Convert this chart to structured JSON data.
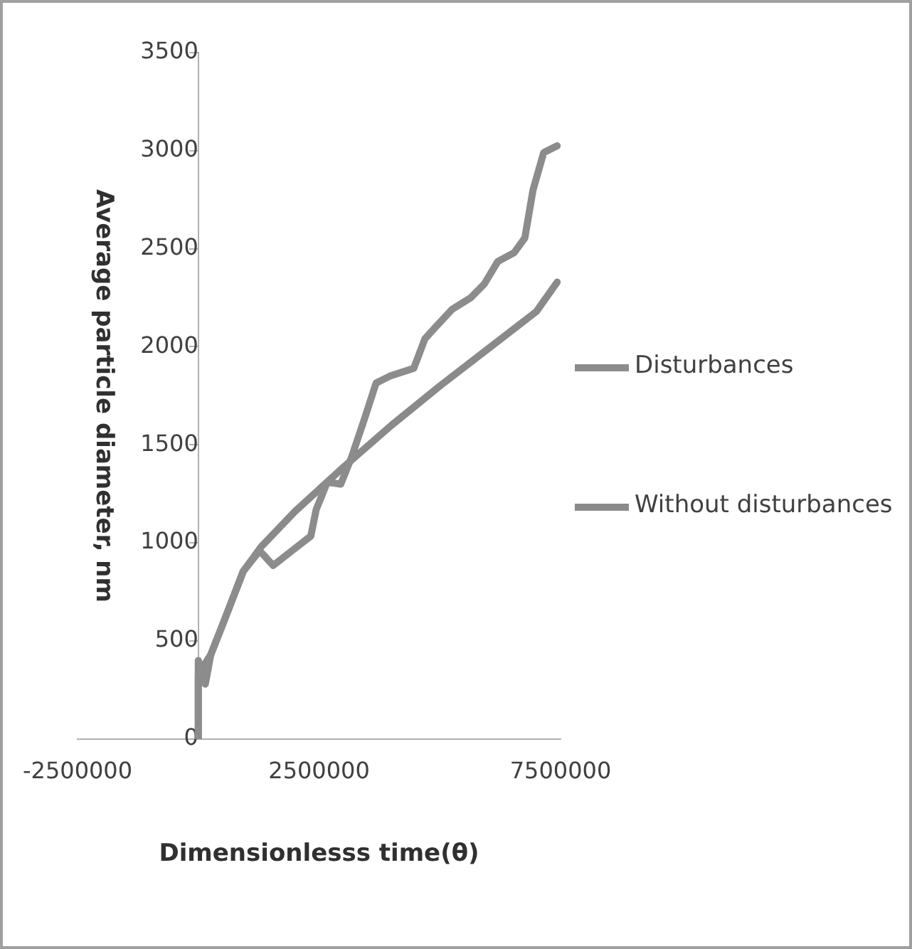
{
  "chart_data": {
    "type": "line",
    "xlabel": "Dimensionlesss time(θ)",
    "ylabel": "Average particle diameter, nm",
    "xlim": [
      -2500000,
      7500000
    ],
    "xticks": [
      -2500000,
      2500000,
      7500000
    ],
    "ylim": [
      0,
      3500
    ],
    "yticks": [
      0,
      500,
      1000,
      1500,
      2000,
      2500,
      3000,
      3500
    ],
    "grid": false,
    "legend": "right",
    "marker": "none",
    "line_style": "solid",
    "series": [
      {
        "name": "Disturbances",
        "color": "#8c8c8c",
        "x": [
          0,
          0,
          145000,
          258000,
          538000,
          930000,
          1270000,
          1550000,
          1940000,
          2330000,
          2440000,
          2670000,
          2950000,
          3170000,
          3450000,
          3680000,
          3960000,
          4460000,
          4690000,
          4910000,
          5250000,
          5640000,
          5920000,
          6200000,
          6540000,
          6760000,
          6930000,
          7150000,
          7430000
        ],
        "values": [
          0,
          400,
          280,
          430,
          605,
          855,
          960,
          885,
          960,
          1035,
          1170,
          1310,
          1300,
          1435,
          1640,
          1815,
          1850,
          1890,
          2040,
          2100,
          2190,
          2250,
          2320,
          2435,
          2480,
          2555,
          2800,
          2990,
          3025
        ]
      },
      {
        "name": "Without disturbances",
        "color": "#8a8a8a",
        "x": [
          0,
          0,
          258000,
          538000,
          930000,
          1300000,
          2000000,
          3000000,
          4000000,
          5000000,
          6000000,
          7000000,
          7430000
        ],
        "values": [
          0,
          330,
          430,
          605,
          855,
          980,
          1160,
          1385,
          1600,
          1800,
          1990,
          2180,
          2330
        ]
      }
    ]
  }
}
